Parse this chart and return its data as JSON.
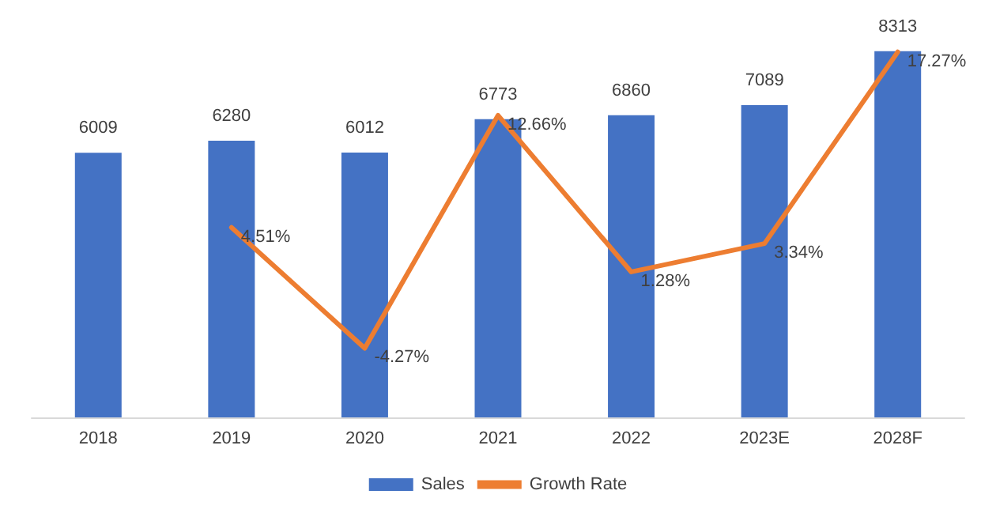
{
  "chart_data": {
    "type": "bar",
    "categories": [
      "2018",
      "2019",
      "2020",
      "2021",
      "2022",
      "2023E",
      "2028F"
    ],
    "series": [
      {
        "name": "Sales",
        "color": "#4472c4",
        "values": [
          6009,
          6280,
          6012,
          6773,
          6860,
          7089,
          8313
        ],
        "value_labels": [
          "6009",
          "6280",
          "6012",
          "6773",
          "6860",
          "7089",
          "8313"
        ]
      },
      {
        "name": "Growth Rate",
        "type": "line",
        "axis": "y2",
        "color": "#ed7d31",
        "values": [
          null,
          4.51,
          -4.27,
          12.66,
          1.28,
          3.34,
          17.27
        ],
        "value_labels": [
          null,
          "4.51%",
          "-4.27%",
          "12.66%",
          "1.28%",
          "3.34%",
          "17.27%"
        ]
      }
    ],
    "ylim": [
      0,
      8400
    ],
    "y2lim": [
      -9.3,
      17.6
    ],
    "tick_labels": "x",
    "grid": false,
    "legend": "bottom",
    "marker": "none",
    "line_style": "solid"
  }
}
